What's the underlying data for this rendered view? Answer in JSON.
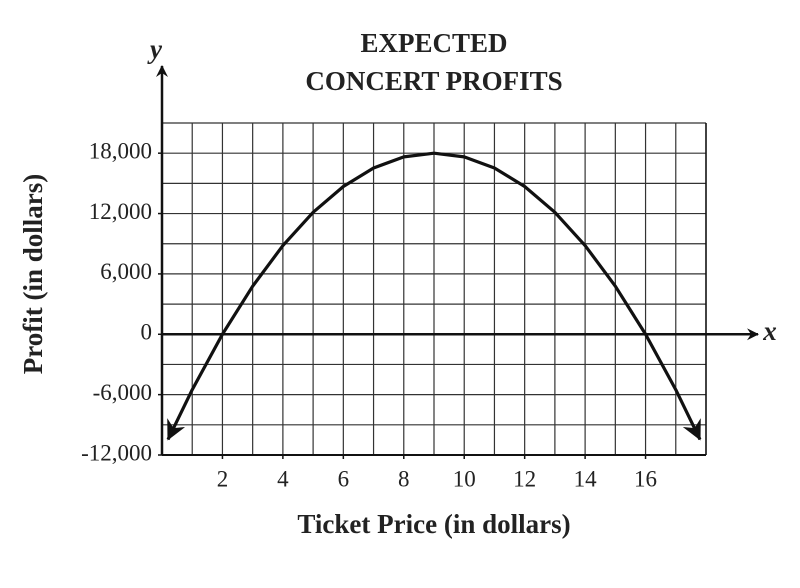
{
  "chart_data": {
    "type": "line",
    "title": [
      "EXPECTED",
      "CONCERT PROFITS"
    ],
    "x_label": "Ticket Price (in dollars)",
    "y_label": "Profit (in dollars)",
    "x_axis_letter": "x",
    "y_axis_letter": "y",
    "x": [
      0.2,
      1,
      2,
      3,
      4,
      5,
      6,
      7,
      8,
      9,
      10,
      11,
      12,
      13,
      14,
      15,
      16,
      17,
      17.8
    ],
    "values": [
      -10450,
      -5510,
      0,
      4780,
      8820,
      12120,
      14690,
      16530,
      17630,
      18000,
      17630,
      16530,
      14690,
      12120,
      8820,
      4780,
      0,
      -5510,
      -10450
    ],
    "color": "#111111",
    "xlim": [
      0,
      18
    ],
    "ylim": [
      -12000,
      21000
    ],
    "xticks": [
      2,
      4,
      6,
      8,
      10,
      12,
      14,
      16
    ],
    "yticks": [
      {
        "value": -12000,
        "label": "-12,000"
      },
      {
        "value": -6000,
        "label": "-6,000"
      },
      0,
      {
        "value": 6000,
        "label": "6,000"
      },
      {
        "value": 12000,
        "label": "12,000"
      },
      {
        "value": 18000,
        "label": "18,000"
      }
    ],
    "grid": true,
    "xgrid": [
      0,
      1,
      2,
      3,
      4,
      5,
      6,
      7,
      8,
      9,
      10,
      11,
      12,
      13,
      14,
      15,
      16,
      17,
      18
    ],
    "ygrid": [
      -12000,
      -9000,
      -6000,
      -3000,
      0,
      3000,
      6000,
      9000,
      12000,
      15000,
      18000,
      21000
    ]
  }
}
